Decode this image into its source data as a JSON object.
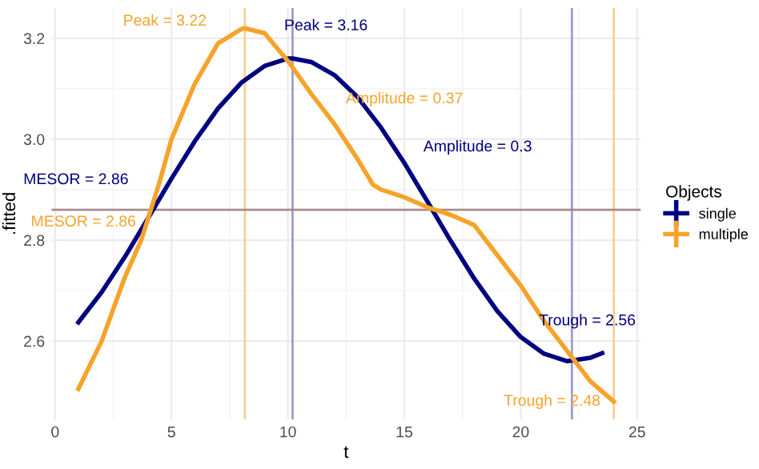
{
  "chart_data": {
    "type": "line",
    "xlabel": "t",
    "ylabel": ".fitted",
    "legend_title": "Objects",
    "series": [
      {
        "name": "single",
        "color": "#000080",
        "x": [
          1,
          2,
          3,
          4,
          5,
          6,
          7,
          8,
          9,
          10,
          10.2,
          11,
          12,
          13,
          14,
          15,
          16,
          17,
          18,
          19,
          20,
          21,
          22,
          23,
          23.5
        ],
        "values": [
          2.637,
          2.697,
          2.767,
          2.844,
          2.922,
          2.996,
          3.061,
          3.112,
          3.145,
          3.16,
          3.16,
          3.153,
          3.127,
          3.083,
          3.023,
          2.953,
          2.876,
          2.798,
          2.724,
          2.659,
          2.608,
          2.575,
          2.56,
          2.567,
          2.576
        ]
      },
      {
        "name": "multiple",
        "color": "#f6a32a",
        "x": [
          1,
          2,
          3,
          3.7,
          4.5,
          5,
          6,
          7,
          8,
          8.15,
          9,
          10,
          11,
          12,
          13,
          13.65,
          14,
          15,
          16,
          17,
          18,
          19,
          20,
          21,
          22,
          23,
          24
        ],
        "values": [
          2.505,
          2.6,
          2.727,
          2.8,
          2.917,
          3.0,
          3.11,
          3.19,
          3.218,
          3.22,
          3.21,
          3.155,
          3.09,
          3.03,
          2.96,
          2.91,
          2.9,
          2.885,
          2.865,
          2.85,
          2.83,
          2.77,
          2.71,
          2.64,
          2.58,
          2.52,
          2.48
        ]
      }
    ],
    "annotations": [
      {
        "text": "Peak = 3.22",
        "x": 8.15,
        "y": 3.22
      },
      {
        "text": "Peak = 3.16",
        "x": 10.2,
        "y": 3.16
      },
      "Amplitude = 0.37",
      {
        "text": "Amplitude = 0.3",
        "x": 15,
        "y": 2.953
      },
      {
        "text": "MESOR = 2.86",
        "x": 4,
        "y": 2.844
      },
      {
        "text": "MESOR = 2.86",
        "x": 3.7,
        "y": 2.8
      },
      {
        "text": "Trough = 2.56",
        "x": 22,
        "y": 2.56
      },
      {
        "text": "Trough = 2.48",
        "x": 24,
        "y": 2.48
      }
    ],
    "ref_lines": [
      {
        "axis": "x",
        "value": 10.2,
        "color": "#9c9cd2"
      },
      {
        "axis": "x",
        "value": 22.2,
        "color": "#9c9cd2"
      },
      {
        "axis": "x",
        "value": 8.15,
        "color": "#f8d08f"
      },
      {
        "axis": "x",
        "value": 24,
        "color": "#f8d08f"
      },
      {
        "axis": "y",
        "value": 2.86,
        "color": "#a58c8c"
      }
    ],
    "xlim": [
      -0.15,
      25.15
    ],
    "ylim": [
      2.445,
      3.26
    ],
    "xticks": [
      0,
      5,
      10,
      15,
      20,
      25
    ],
    "yticks": [
      {
        "value": 2.6,
        "label": "2.6"
      },
      {
        "value": 2.8,
        "label": "2.8"
      },
      {
        "value": 3.0,
        "label": "3.0"
      },
      {
        "value": 3.2,
        "label": "3.2"
      }
    ],
    "grid": true,
    "legend": "right",
    "marker": "none",
    "line_style": "solid"
  }
}
